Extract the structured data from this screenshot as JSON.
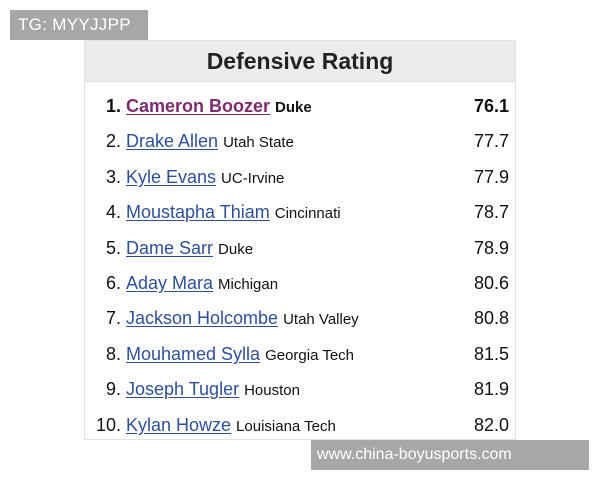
{
  "watermark_top": "TG: MYYJJPP",
  "watermark_bottom": "www.china-boyusports.com",
  "table": {
    "title": "Defensive Rating",
    "rows": [
      {
        "rank": "1.",
        "name": "Cameron Boozer",
        "school": "Duke",
        "rating": "76.1"
      },
      {
        "rank": "2.",
        "name": "Drake Allen",
        "school": "Utah State",
        "rating": "77.7"
      },
      {
        "rank": "3.",
        "name": "Kyle Evans",
        "school": "UC-Irvine",
        "rating": "77.9"
      },
      {
        "rank": "4.",
        "name": "Moustapha Thiam",
        "school": "Cincinnati",
        "rating": "78.7"
      },
      {
        "rank": "5.",
        "name": "Dame Sarr",
        "school": "Duke",
        "rating": "78.9"
      },
      {
        "rank": "6.",
        "name": "Aday Mara",
        "school": "Michigan",
        "rating": "80.6"
      },
      {
        "rank": "7.",
        "name": "Jackson Holcombe",
        "school": "Utah Valley",
        "rating": "80.8"
      },
      {
        "rank": "8.",
        "name": "Mouhamed Sylla",
        "school": "Georgia Tech",
        "rating": "81.5"
      },
      {
        "rank": "9.",
        "name": "Joseph Tugler",
        "school": "Houston",
        "rating": "81.9"
      },
      {
        "rank": "10.",
        "name": "Kylan Howze",
        "school": "Louisiana Tech",
        "rating": "82.0"
      }
    ]
  }
}
